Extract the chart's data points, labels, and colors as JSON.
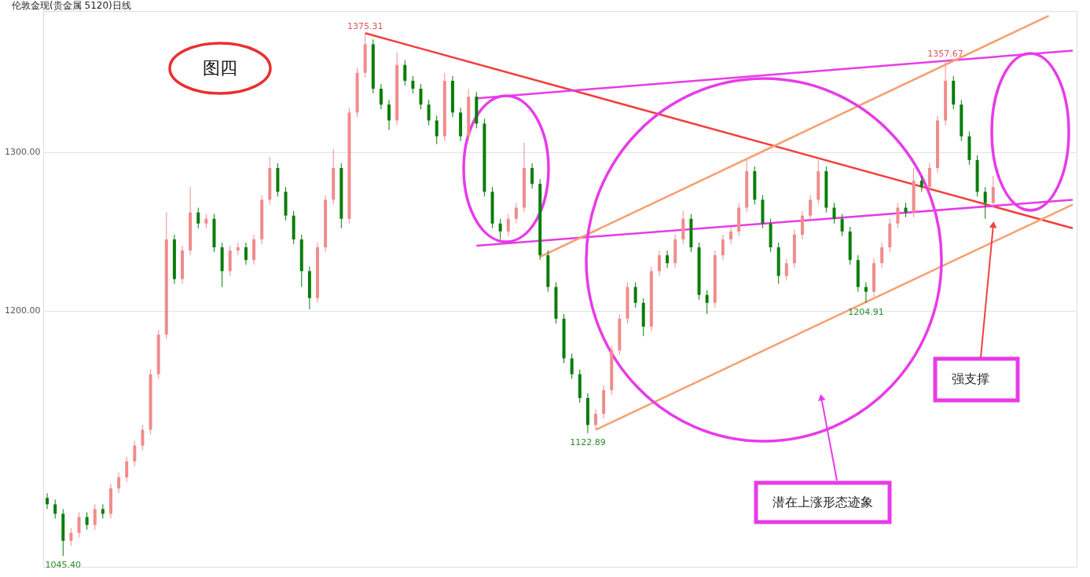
{
  "chart_data": {
    "type": "candlestick",
    "title": "伦敦金现(贵金属 5120)日线",
    "categories": [
      null,
      null,
      null,
      null,
      null,
      null,
      null,
      null,
      null,
      null,
      null,
      null,
      null,
      null,
      null,
      null,
      null,
      null,
      null,
      null,
      null,
      null,
      null,
      null,
      null,
      null,
      null,
      null,
      null,
      null,
      null,
      null,
      null,
      null,
      null,
      null,
      null,
      null,
      null,
      null,
      null,
      null,
      null,
      null,
      null,
      null,
      null,
      null,
      null,
      null,
      null,
      null,
      null,
      null,
      null,
      null,
      null,
      null,
      null,
      null,
      null,
      null,
      null,
      null,
      null,
      null,
      null,
      null,
      null,
      null,
      null,
      null,
      null,
      null,
      null,
      null,
      null,
      null,
      null,
      null,
      null,
      null,
      null,
      null,
      null,
      null,
      null,
      null,
      null,
      null,
      null,
      null,
      null,
      null,
      null,
      null,
      null,
      null,
      null,
      null,
      null,
      null,
      null,
      null,
      null,
      null,
      null,
      null,
      null,
      null,
      null,
      null,
      null,
      null,
      null,
      null,
      null,
      null,
      null,
      null,
      null,
      null,
      null,
      null,
      null,
      null,
      null,
      null,
      null,
      null
    ],
    "ohlc": [
      [
        1082,
        1085,
        1075,
        1078
      ],
      [
        1078,
        1081,
        1069,
        1072
      ],
      [
        1072,
        1075,
        1045.4,
        1055
      ],
      [
        1055,
        1063,
        1052,
        1060
      ],
      [
        1060,
        1073,
        1057,
        1070
      ],
      [
        1070,
        1073,
        1062,
        1065
      ],
      [
        1065,
        1078,
        1062,
        1075
      ],
      [
        1075,
        1078,
        1069,
        1072
      ],
      [
        1072,
        1091,
        1069,
        1088
      ],
      [
        1088,
        1098,
        1085,
        1095
      ],
      [
        1095,
        1108,
        1092,
        1105
      ],
      [
        1105,
        1118,
        1102,
        1115
      ],
      [
        1115,
        1128,
        1112,
        1125
      ],
      [
        1125,
        1163,
        1122,
        1160
      ],
      [
        1160,
        1188,
        1157,
        1185
      ],
      [
        1185,
        1262,
        1182,
        1245
      ],
      [
        1245,
        1248,
        1217,
        1220
      ],
      [
        1220,
        1241,
        1217,
        1238
      ],
      [
        1238,
        1278,
        1235,
        1262
      ],
      [
        1262,
        1265,
        1252,
        1255
      ],
      [
        1255,
        1261,
        1252,
        1258
      ],
      [
        1258,
        1261,
        1237,
        1240
      ],
      [
        1240,
        1243,
        1215,
        1225
      ],
      [
        1225,
        1241,
        1222,
        1238
      ],
      [
        1238,
        1243,
        1235,
        1240
      ],
      [
        1240,
        1243,
        1229,
        1232
      ],
      [
        1232,
        1248,
        1229,
        1245
      ],
      [
        1245,
        1273,
        1242,
        1270
      ],
      [
        1270,
        1297,
        1267,
        1290
      ],
      [
        1290,
        1293,
        1272,
        1275
      ],
      [
        1275,
        1278,
        1257,
        1260
      ],
      [
        1260,
        1263,
        1242,
        1245
      ],
      [
        1245,
        1248,
        1215,
        1225
      ],
      [
        1225,
        1228,
        1201,
        1208
      ],
      [
        1208,
        1243,
        1205,
        1240
      ],
      [
        1240,
        1273,
        1237,
        1270
      ],
      [
        1270,
        1302,
        1267,
        1290
      ],
      [
        1290,
        1293,
        1252,
        1258
      ],
      [
        1258,
        1328,
        1255,
        1325
      ],
      [
        1325,
        1353,
        1322,
        1350
      ],
      [
        1350,
        1375.31,
        1347,
        1368
      ],
      [
        1368,
        1371,
        1337,
        1340
      ],
      [
        1340,
        1343,
        1327,
        1330
      ],
      [
        1330,
        1333,
        1314,
        1320
      ],
      [
        1320,
        1363,
        1317,
        1355
      ],
      [
        1355,
        1358,
        1342,
        1345
      ],
      [
        1345,
        1348,
        1337,
        1340
      ],
      [
        1340,
        1343,
        1327,
        1330
      ],
      [
        1330,
        1333,
        1317,
        1320
      ],
      [
        1320,
        1323,
        1305,
        1310
      ],
      [
        1310,
        1350,
        1307,
        1345
      ],
      [
        1345,
        1348,
        1322,
        1325
      ],
      [
        1325,
        1328,
        1307,
        1310
      ],
      [
        1310,
        1340,
        1307,
        1335
      ],
      [
        1335,
        1338,
        1315,
        1318
      ],
      [
        1318,
        1321,
        1272,
        1275
      ],
      [
        1275,
        1278,
        1252,
        1255
      ],
      [
        1255,
        1258,
        1245,
        1250
      ],
      [
        1250,
        1261,
        1247,
        1258
      ],
      [
        1258,
        1268,
        1255,
        1265
      ],
      [
        1265,
        1306,
        1262,
        1290
      ],
      [
        1290,
        1293,
        1277,
        1280
      ],
      [
        1280,
        1283,
        1232,
        1235
      ],
      [
        1235,
        1238,
        1212,
        1215
      ],
      [
        1215,
        1218,
        1192,
        1195
      ],
      [
        1195,
        1198,
        1167,
        1170
      ],
      [
        1170,
        1173,
        1157,
        1160
      ],
      [
        1160,
        1163,
        1142,
        1145
      ],
      [
        1145,
        1148,
        1122.89,
        1128
      ],
      [
        1128,
        1138,
        1125,
        1135
      ],
      [
        1135,
        1153,
        1132,
        1150
      ],
      [
        1150,
        1178,
        1147,
        1175
      ],
      [
        1175,
        1198,
        1172,
        1195
      ],
      [
        1195,
        1218,
        1192,
        1215
      ],
      [
        1215,
        1218,
        1202,
        1205
      ],
      [
        1205,
        1208,
        1184,
        1190
      ],
      [
        1190,
        1228,
        1187,
        1225
      ],
      [
        1225,
        1238,
        1222,
        1235
      ],
      [
        1235,
        1238,
        1227,
        1230
      ],
      [
        1230,
        1248,
        1227,
        1245
      ],
      [
        1245,
        1263,
        1242,
        1258
      ],
      [
        1258,
        1261,
        1237,
        1240
      ],
      [
        1240,
        1243,
        1207,
        1210
      ],
      [
        1210,
        1213,
        1198,
        1205
      ],
      [
        1205,
        1238,
        1202,
        1235
      ],
      [
        1235,
        1248,
        1232,
        1245
      ],
      [
        1245,
        1253,
        1242,
        1250
      ],
      [
        1250,
        1268,
        1247,
        1265
      ],
      [
        1265,
        1295,
        1262,
        1288
      ],
      [
        1288,
        1291,
        1267,
        1270
      ],
      [
        1270,
        1273,
        1252,
        1255
      ],
      [
        1255,
        1258,
        1237,
        1240
      ],
      [
        1240,
        1243,
        1217,
        1222
      ],
      [
        1222,
        1233,
        1219,
        1230
      ],
      [
        1230,
        1251,
        1227,
        1248
      ],
      [
        1248,
        1263,
        1245,
        1260
      ],
      [
        1260,
        1273,
        1257,
        1270
      ],
      [
        1270,
        1295,
        1267,
        1288
      ],
      [
        1288,
        1291,
        1262,
        1265
      ],
      [
        1265,
        1268,
        1255,
        1258
      ],
      [
        1258,
        1261,
        1247,
        1250
      ],
      [
        1250,
        1253,
        1229,
        1232
      ],
      [
        1232,
        1235,
        1212,
        1215
      ],
      [
        1215,
        1218,
        1204.91,
        1212
      ],
      [
        1212,
        1233,
        1209,
        1230
      ],
      [
        1230,
        1243,
        1227,
        1240
      ],
      [
        1240,
        1258,
        1237,
        1255
      ],
      [
        1255,
        1268,
        1252,
        1265
      ],
      [
        1265,
        1268,
        1259,
        1262
      ],
      [
        1262,
        1290,
        1259,
        1282
      ],
      [
        1282,
        1285,
        1275,
        1278
      ],
      [
        1278,
        1293,
        1275,
        1290
      ],
      [
        1290,
        1323,
        1287,
        1320
      ],
      [
        1320,
        1357.67,
        1317,
        1345
      ],
      [
        1345,
        1348,
        1327,
        1330
      ],
      [
        1330,
        1333,
        1307,
        1310
      ],
      [
        1310,
        1313,
        1292,
        1295
      ],
      [
        1295,
        1298,
        1272,
        1275
      ],
      [
        1275,
        1278,
        1258,
        1268
      ],
      [
        1268,
        1285,
        1265,
        1278
      ],
      null,
      null,
      null,
      null,
      null,
      null,
      null,
      null,
      null,
      null
    ],
    "colors": [
      "#0a7d0a",
      "#0a7d0a",
      "#0a7d0a",
      "#f08c8c",
      "#f08c8c",
      "#0a7d0a",
      "#f08c8c",
      "#0a7d0a",
      "#f08c8c",
      "#f08c8c",
      "#f08c8c",
      "#f08c8c",
      "#f08c8c",
      "#f08c8c",
      "#f08c8c",
      "#f08c8c",
      "#0a7d0a",
      "#f08c8c",
      "#f08c8c",
      "#0a7d0a",
      "#f08c8c",
      "#0a7d0a",
      "#0a7d0a",
      "#f08c8c",
      "#f08c8c",
      "#0a7d0a",
      "#f08c8c",
      "#f08c8c",
      "#f08c8c",
      "#0a7d0a",
      "#0a7d0a",
      "#0a7d0a",
      "#0a7d0a",
      "#0a7d0a",
      "#f08c8c",
      "#f08c8c",
      "#f08c8c",
      "#0a7d0a",
      "#f08c8c",
      "#f08c8c",
      "#f08c8c",
      "#0a7d0a",
      "#0a7d0a",
      "#0a7d0a",
      "#f08c8c",
      "#0a7d0a",
      "#0a7d0a",
      "#0a7d0a",
      "#0a7d0a",
      "#0a7d0a",
      "#f08c8c",
      "#0a7d0a",
      "#0a7d0a",
      "#f08c8c",
      "#0a7d0a",
      "#0a7d0a",
      "#0a7d0a",
      "#0a7d0a",
      "#f08c8c",
      "#f08c8c",
      "#f08c8c",
      "#0a7d0a",
      "#0a7d0a",
      "#0a7d0a",
      "#0a7d0a",
      "#0a7d0a",
      "#0a7d0a",
      "#0a7d0a",
      "#0a7d0a",
      "#f08c8c",
      "#f08c8c",
      "#f08c8c",
      "#f08c8c",
      "#f08c8c",
      "#0a7d0a",
      "#0a7d0a",
      "#f08c8c",
      "#f08c8c",
      "#0a7d0a",
      "#f08c8c",
      "#f08c8c",
      "#0a7d0a",
      "#0a7d0a",
      "#0a7d0a",
      "#f08c8c",
      "#f08c8c",
      "#f08c8c",
      "#f08c8c",
      "#f08c8c",
      "#0a7d0a",
      "#0a7d0a",
      "#0a7d0a",
      "#0a7d0a",
      "#f08c8c",
      "#f08c8c",
      "#f08c8c",
      "#f08c8c",
      "#f08c8c",
      "#0a7d0a",
      "#0a7d0a",
      "#0a7d0a",
      "#0a7d0a",
      "#0a7d0a",
      "#0a7d0a",
      "#f08c8c",
      "#f08c8c",
      "#f08c8c",
      "#f08c8c",
      "#0a7d0a",
      "#f08c8c",
      "#0a7d0a",
      "#f08c8c",
      "#f08c8c",
      "#f08c8c",
      "#0a7d0a",
      "#0a7d0a",
      "#0a7d0a",
      "#0a7d0a",
      "#0a7d0a",
      "#f08c8c",
      null,
      null,
      null,
      null,
      null,
      null,
      null,
      null,
      null,
      null
    ],
    "series": [
      {
        "type": "line",
        "color": "#f0403c",
        "values": [
          null,
          null,
          null,
          null,
          null,
          null,
          null,
          null,
          null,
          null,
          null,
          null,
          null,
          null,
          null,
          null,
          null,
          null,
          null,
          null,
          null,
          null,
          null,
          null,
          null,
          null,
          null,
          null,
          null,
          null,
          null,
          null,
          null,
          null,
          null,
          null,
          null,
          null,
          null,
          null,
          1375,
          null,
          null,
          null,
          null,
          null,
          null,
          null,
          null,
          null,
          null,
          null,
          null,
          null,
          null,
          null,
          null,
          null,
          null,
          null,
          null,
          null,
          null,
          null,
          null,
          null,
          null,
          null,
          null,
          null,
          null,
          null,
          null,
          null,
          null,
          null,
          null,
          null,
          null,
          null,
          null,
          null,
          null,
          null,
          null,
          null,
          null,
          null,
          null,
          null,
          null,
          null,
          null,
          null,
          null,
          null,
          null,
          null,
          null,
          null,
          null,
          null,
          null,
          null,
          null,
          null,
          null,
          null,
          null,
          null,
          null,
          null,
          null,
          null,
          null,
          null,
          null,
          null,
          null,
          null,
          null,
          null,
          null,
          null,
          null,
          null,
          null,
          null,
          null,
          1252
        ]
      },
      {
        "type": "line",
        "color": "#e83be8",
        "values": [
          null,
          null,
          null,
          null,
          null,
          null,
          null,
          null,
          null,
          null,
          null,
          null,
          null,
          null,
          null,
          null,
          null,
          null,
          null,
          null,
          null,
          null,
          null,
          null,
          null,
          null,
          null,
          null,
          null,
          null,
          null,
          null,
          null,
          null,
          null,
          null,
          null,
          null,
          null,
          null,
          null,
          null,
          null,
          null,
          null,
          null,
          null,
          null,
          null,
          null,
          null,
          null,
          null,
          null,
          1334,
          null,
          null,
          null,
          null,
          null,
          null,
          null,
          null,
          null,
          null,
          null,
          null,
          null,
          null,
          null,
          null,
          null,
          null,
          null,
          null,
          null,
          null,
          null,
          null,
          null,
          null,
          null,
          null,
          null,
          null,
          null,
          null,
          null,
          null,
          null,
          null,
          null,
          null,
          null,
          null,
          null,
          null,
          null,
          null,
          null,
          null,
          null,
          null,
          null,
          null,
          null,
          null,
          null,
          null,
          null,
          null,
          null,
          null,
          null,
          null,
          null,
          null,
          null,
          null,
          null,
          null,
          null,
          null,
          null,
          null,
          null,
          null,
          null,
          null,
          1364
        ]
      },
      {
        "type": "line",
        "color": "#e83be8",
        "values": [
          null,
          null,
          null,
          null,
          null,
          null,
          null,
          null,
          null,
          null,
          null,
          null,
          null,
          null,
          null,
          null,
          null,
          null,
          null,
          null,
          null,
          null,
          null,
          null,
          null,
          null,
          null,
          null,
          null,
          null,
          null,
          null,
          null,
          null,
          null,
          null,
          null,
          null,
          null,
          null,
          null,
          null,
          null,
          null,
          null,
          null,
          null,
          null,
          null,
          null,
          null,
          null,
          null,
          null,
          1241,
          null,
          null,
          null,
          null,
          null,
          null,
          null,
          null,
          null,
          null,
          null,
          null,
          null,
          null,
          null,
          null,
          null,
          null,
          null,
          null,
          null,
          null,
          null,
          null,
          null,
          null,
          null,
          null,
          null,
          null,
          null,
          null,
          null,
          null,
          null,
          null,
          null,
          null,
          null,
          null,
          null,
          null,
          null,
          null,
          null,
          null,
          null,
          null,
          null,
          null,
          null,
          null,
          null,
          null,
          null,
          null,
          null,
          null,
          null,
          null,
          null,
          null,
          null,
          null,
          null,
          null,
          null,
          null,
          null,
          null,
          null,
          null,
          null,
          null,
          1270
        ]
      },
      {
        "type": "line",
        "color": "#f5a070",
        "values": [
          null,
          null,
          null,
          null,
          null,
          null,
          null,
          null,
          null,
          null,
          null,
          null,
          null,
          null,
          null,
          null,
          null,
          null,
          null,
          null,
          null,
          null,
          null,
          null,
          null,
          null,
          null,
          null,
          null,
          null,
          null,
          null,
          null,
          null,
          null,
          null,
          null,
          null,
          null,
          null,
          null,
          null,
          null,
          null,
          null,
          null,
          null,
          null,
          null,
          null,
          null,
          null,
          null,
          null,
          null,
          null,
          null,
          null,
          null,
          null,
          null,
          null,
          1234,
          null,
          null,
          null,
          null,
          null,
          null,
          null,
          null,
          null,
          null,
          null,
          null,
          null,
          null,
          null,
          null,
          null,
          null,
          null,
          null,
          null,
          null,
          null,
          null,
          null,
          null,
          null,
          null,
          null,
          null,
          null,
          null,
          null,
          null,
          null,
          null,
          null,
          null,
          null,
          null,
          null,
          null,
          null,
          null,
          null,
          null,
          null,
          null,
          null,
          null,
          null,
          null,
          null,
          null,
          null,
          null,
          null,
          null,
          null,
          null,
          null,
          null,
          null,
          1386,
          null,
          null,
          null
        ]
      },
      {
        "type": "line",
        "color": "#f5a070",
        "values": [
          null,
          null,
          null,
          null,
          null,
          null,
          null,
          null,
          null,
          null,
          null,
          null,
          null,
          null,
          null,
          null,
          null,
          null,
          null,
          null,
          null,
          null,
          null,
          null,
          null,
          null,
          null,
          null,
          null,
          null,
          null,
          null,
          null,
          null,
          null,
          null,
          null,
          null,
          null,
          null,
          null,
          null,
          null,
          null,
          null,
          null,
          null,
          null,
          null,
          null,
          null,
          null,
          null,
          null,
          null,
          null,
          null,
          null,
          null,
          null,
          null,
          null,
          null,
          null,
          null,
          null,
          null,
          null,
          null,
          1125,
          null,
          null,
          null,
          null,
          null,
          null,
          null,
          null,
          null,
          null,
          null,
          null,
          null,
          null,
          null,
          null,
          null,
          null,
          null,
          null,
          null,
          null,
          null,
          null,
          null,
          null,
          null,
          null,
          null,
          null,
          null,
          null,
          null,
          null,
          null,
          null,
          null,
          null,
          null,
          null,
          null,
          null,
          null,
          null,
          null,
          null,
          null,
          null,
          null,
          null,
          null,
          null,
          null,
          null,
          null,
          null,
          null,
          null,
          null,
          1267
        ]
      }
    ],
    "ylim": [
      1038.6,
      1389
    ],
    "yticks": [
      {
        "value": 1200,
        "label": "1200.00"
      },
      {
        "value": 1300,
        "label": "1300.00"
      }
    ],
    "grid": "y",
    "tick_labels": "y",
    "annotations": [
      "图四",
      "强支撑",
      "潜在上涨形态迹象",
      {
        "text": "1375.31",
        "y": 1375.31
      },
      {
        "text": "1357.67",
        "y": 1357.67
      },
      {
        "text": "1122.89",
        "y": 1122.89
      },
      {
        "text": "1204.91",
        "y": 1204.91
      },
      {
        "text": "1045.40",
        "y": 1045.4
      }
    ]
  }
}
